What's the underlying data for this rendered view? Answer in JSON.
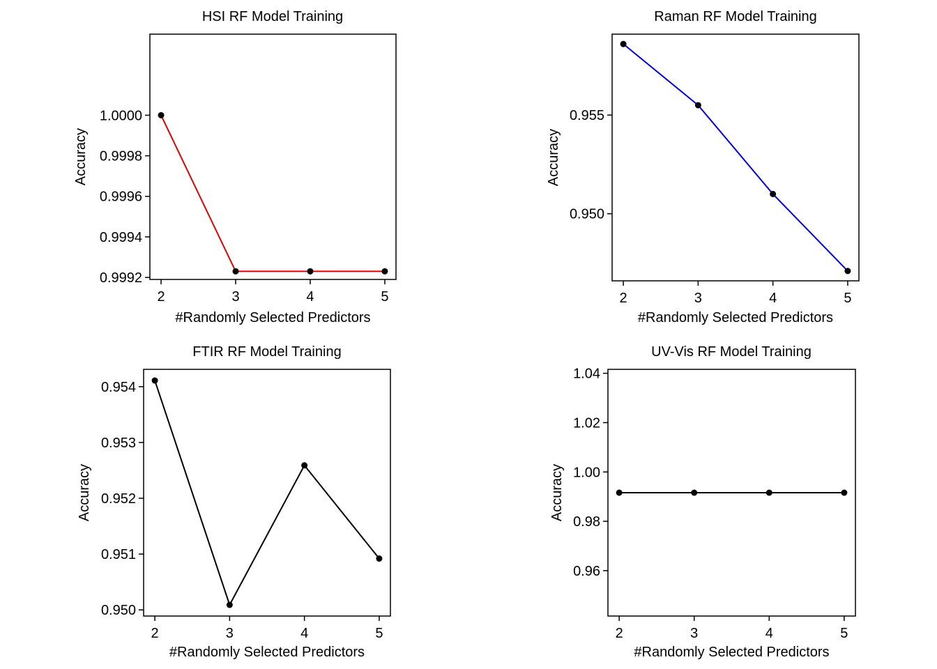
{
  "chart_data": [
    {
      "type": "line",
      "title": "HSI RF Model Training",
      "xlabel": "#Randomly Selected Predictors",
      "ylabel": "Accuracy",
      "x": [
        2,
        3,
        4,
        5
      ],
      "xticks": [
        "2",
        "3",
        "4",
        "5"
      ],
      "xlim": [
        1.85,
        5.15
      ],
      "series": [
        {
          "values": [
            1.0,
            0.99923,
            0.99923,
            0.99923
          ],
          "color": "#e00000"
        }
      ],
      "yticks": [
        {
          "value": 1.0,
          "label": "1.0000"
        },
        {
          "value": 0.9998,
          "label": "0.9998"
        },
        {
          "value": 0.9996,
          "label": "0.9996"
        },
        {
          "value": 0.9994,
          "label": "0.9994"
        },
        {
          "value": 0.9992,
          "label": "0.9992"
        }
      ],
      "ylim": [
        0.99919,
        1.0004
      ],
      "grid": false
    },
    {
      "type": "line",
      "title": "Raman RF Model Training",
      "xlabel": "#Randomly Selected Predictors",
      "ylabel": "Accuracy",
      "x": [
        2,
        3,
        4,
        5
      ],
      "xticks": [
        "2",
        "3",
        "4",
        "5"
      ],
      "xlim": [
        1.85,
        5.15
      ],
      "series": [
        {
          "values": [
            0.9586,
            0.9555,
            0.951,
            0.9471
          ],
          "color": "#0000e0"
        }
      ],
      "yticks": [
        {
          "value": 0.955,
          "label": "0.955"
        },
        {
          "value": 0.95,
          "label": "0.950"
        }
      ],
      "ylim": [
        0.9466,
        0.9591
      ],
      "grid": false
    },
    {
      "type": "line",
      "title": "FTIR RF Model Training",
      "xlabel": "#Randomly Selected Predictors",
      "ylabel": "Accuracy",
      "x": [
        2,
        3,
        4,
        5
      ],
      "xticks": [
        "2",
        "3",
        "4",
        "5"
      ],
      "xlim": [
        1.85,
        5.15
      ],
      "series": [
        {
          "values": [
            0.95411,
            0.95009,
            0.95259,
            0.95092
          ],
          "color": "#000000"
        }
      ],
      "yticks": [
        {
          "value": 0.954,
          "label": "0.954"
        },
        {
          "value": 0.953,
          "label": "0.953"
        },
        {
          "value": 0.952,
          "label": "0.952"
        },
        {
          "value": 0.951,
          "label": "0.951"
        },
        {
          "value": 0.95,
          "label": "0.950"
        }
      ],
      "ylim": [
        0.94989,
        0.95431
      ],
      "grid": false
    },
    {
      "type": "line",
      "title": "UV-Vis RF Model Training",
      "xlabel": "#Randomly Selected Predictors",
      "ylabel": "Accuracy",
      "x": [
        2,
        3,
        4,
        5
      ],
      "xticks": [
        "2",
        "3",
        "4",
        "5"
      ],
      "xlim": [
        1.85,
        5.15
      ],
      "series": [
        {
          "values": [
            0.9916,
            0.9916,
            0.9916,
            0.9916
          ],
          "color": "#000000"
        }
      ],
      "yticks": [
        {
          "value": 1.04,
          "label": "1.04"
        },
        {
          "value": 1.02,
          "label": "1.02"
        },
        {
          "value": 1.0,
          "label": "1.00"
        },
        {
          "value": 0.98,
          "label": "0.98"
        },
        {
          "value": 0.96,
          "label": "0.96"
        }
      ],
      "ylim": [
        0.9416,
        1.0416
      ],
      "grid": false
    }
  ]
}
